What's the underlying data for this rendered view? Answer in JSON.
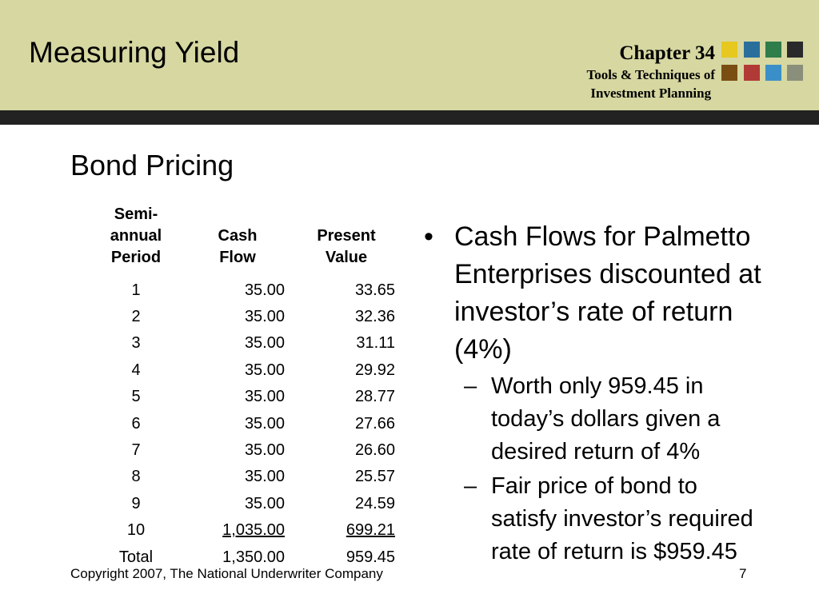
{
  "header": {
    "title": "Measuring Yield",
    "chapter": "Chapter 34",
    "chapter_sub_line1": "Tools & Techniques of",
    "chapter_sub_line2": "Investment Planning",
    "swatch_colors": [
      "#e6c81e",
      "#2a6f9c",
      "#2e7d4a",
      "#2a2a2a",
      "#7a4e12",
      "#b23a36",
      "#3a8fc8",
      "#8a8f7c"
    ]
  },
  "slide": {
    "subtitle": "Bond Pricing",
    "table": {
      "headers": [
        "Semi-annual Period",
        "Cash Flow",
        "Present Value"
      ],
      "header_lines": [
        [
          "Semi-",
          "annual",
          "Period"
        ],
        [
          "Cash",
          "Flow"
        ],
        [
          "Present",
          "Value"
        ]
      ],
      "rows": [
        [
          "1",
          "35.00",
          "33.65"
        ],
        [
          "2",
          "35.00",
          "32.36"
        ],
        [
          "3",
          "35.00",
          "31.11"
        ],
        [
          "4",
          "35.00",
          "29.92"
        ],
        [
          "5",
          "35.00",
          "28.77"
        ],
        [
          "6",
          "35.00",
          "27.66"
        ],
        [
          "7",
          "35.00",
          "26.60"
        ],
        [
          "8",
          "35.00",
          "25.57"
        ],
        [
          "9",
          "35.00",
          "24.59"
        ],
        [
          "10",
          "1,035.00",
          "699.21"
        ],
        [
          "Total",
          "1,350.00",
          "959.45"
        ]
      ]
    },
    "bullet": "Cash Flows for Palmetto Enterprises discounted at investor’s rate of return (4%)",
    "sub_bullets": [
      "Worth only 959.45 in today’s dollars given a desired return of 4%",
      "Fair price of bond to satisfy investor’s required rate of return is $959.45"
    ],
    "copyright": "Copyright 2007, The National Underwriter Company",
    "page_number": "7"
  }
}
